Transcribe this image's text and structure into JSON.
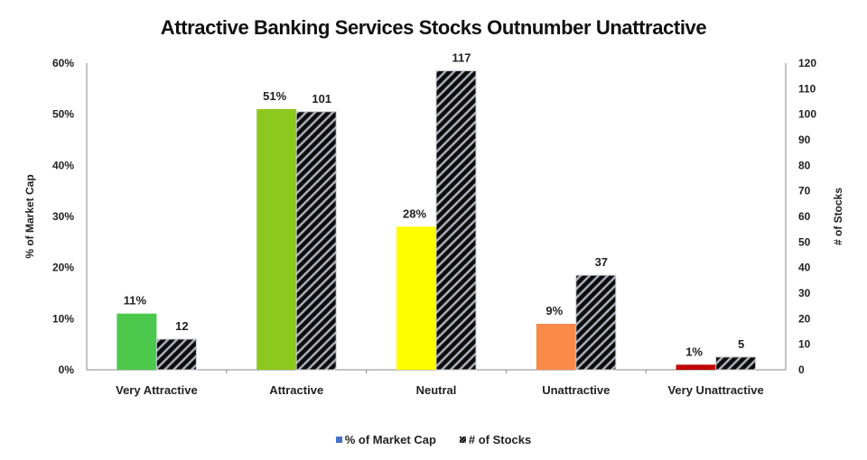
{
  "chart_data": {
    "type": "bar",
    "title": "Attractive Banking Services Stocks Outnumber Unattractive",
    "categories": [
      "Very Attractive",
      "Attractive",
      "Neutral",
      "Unattractive",
      "Very Unattractive"
    ],
    "series": [
      {
        "name": "% of Market Cap",
        "axis": "left",
        "values": [
          11,
          51,
          28,
          9,
          1
        ],
        "labels": [
          "11%",
          "51%",
          "28%",
          "9%",
          "1%"
        ],
        "colors": [
          "#4cc94c",
          "#8cc81e",
          "#ffff00",
          "#f98a4a",
          "#c00000"
        ],
        "legend_color": "#4472c4"
      },
      {
        "name": "# of Stocks",
        "axis": "right",
        "values": [
          12,
          101,
          117,
          37,
          5
        ],
        "labels": [
          "12",
          "101",
          "117",
          "37",
          "5"
        ],
        "pattern": "diagonal-hatch black/grey"
      }
    ],
    "ylabel": "% of Market Cap",
    "ylabel_right": "# of Stocks",
    "ylim": [
      0,
      60
    ],
    "ylim_right": [
      0,
      120
    ],
    "yticks": [
      "0%",
      "10%",
      "20%",
      "30%",
      "40%",
      "50%",
      "60%"
    ],
    "yticks_right": [
      "0",
      "10",
      "20",
      "30",
      "40",
      "50",
      "60",
      "70",
      "80",
      "90",
      "100",
      "110",
      "120"
    ],
    "grid": false,
    "legend_position": "bottom"
  },
  "legend": {
    "items": [
      {
        "label": "% of Market Cap"
      },
      {
        "label": "# of Stocks"
      }
    ]
  }
}
